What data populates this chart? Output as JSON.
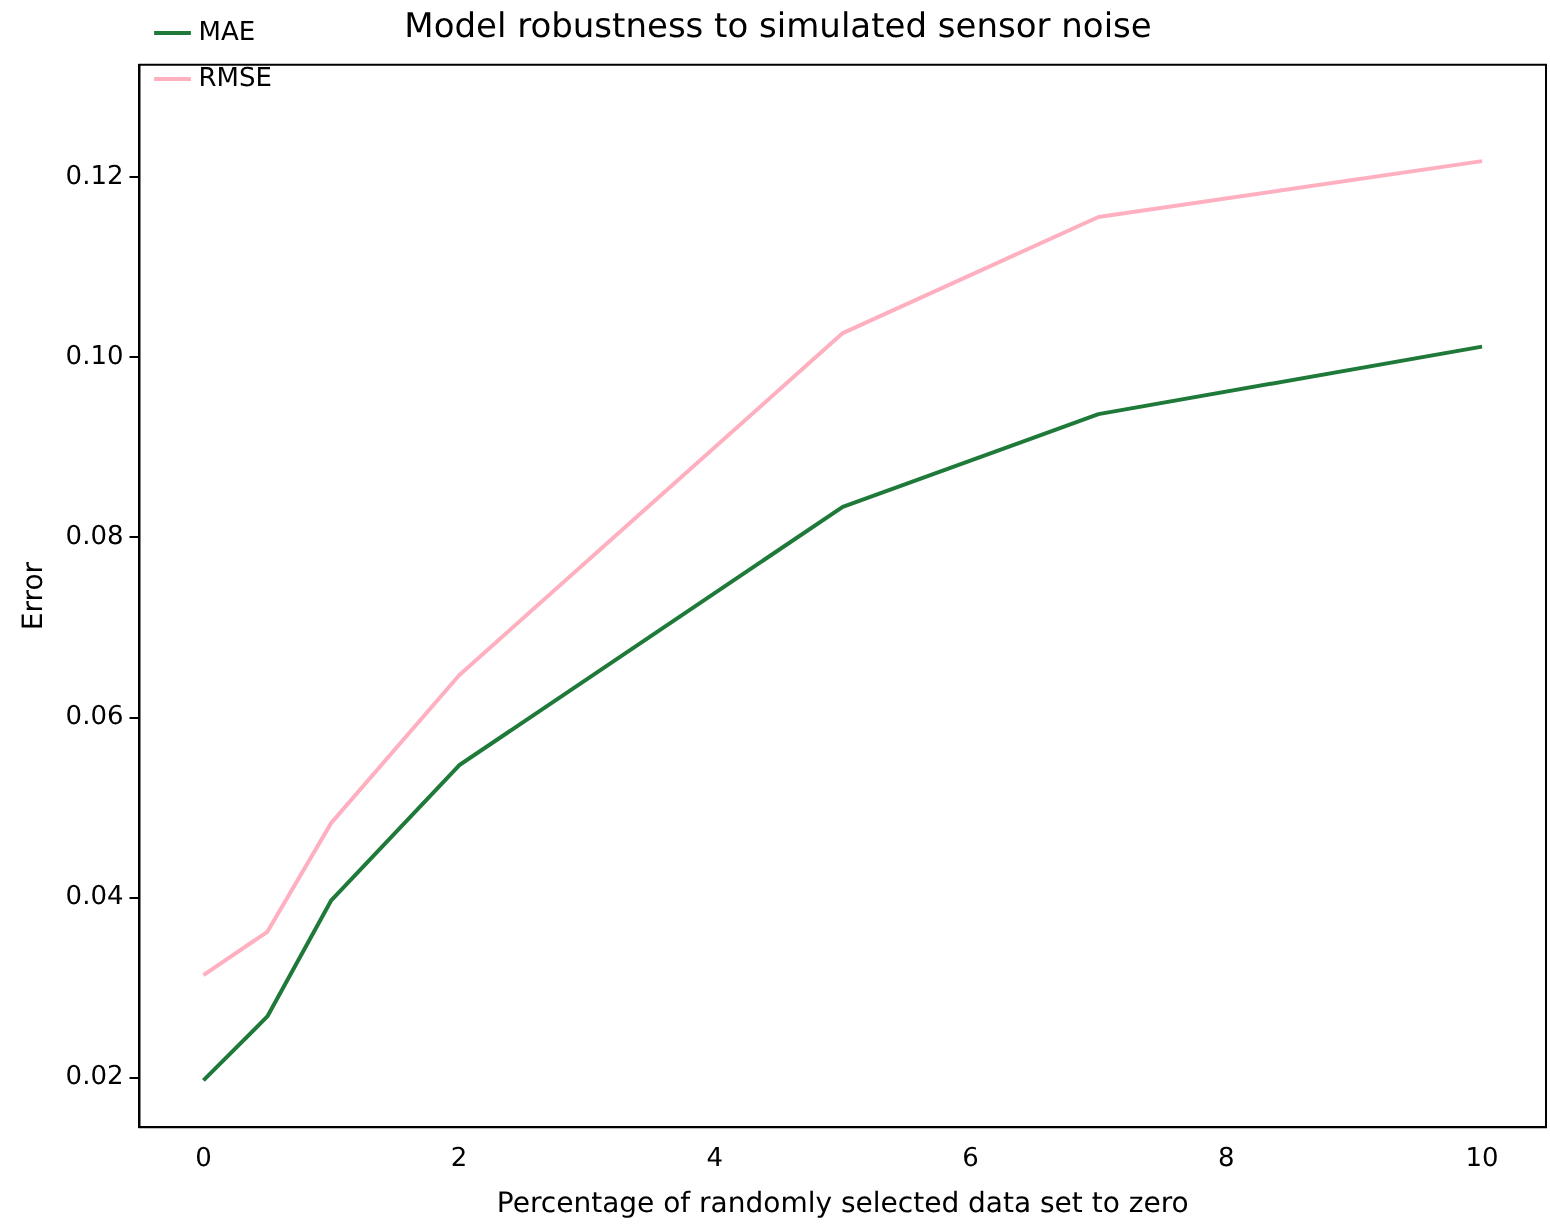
{
  "chart_data": {
    "type": "line",
    "title": "Model robustness to simulated sensor noise",
    "xlabel": "Percentage of randomly selected data set to zero",
    "ylabel": "Error",
    "x": [
      0,
      0.5,
      1,
      2,
      5,
      7,
      10
    ],
    "series": [
      {
        "name": "MAE",
        "color": "#1f7a3a",
        "values": [
          0.0197,
          0.0268,
          0.0397,
          0.0547,
          0.0834,
          0.0937,
          0.1012
        ]
      },
      {
        "name": "RMSE",
        "color": "#ffb0c0",
        "values": [
          0.0314,
          0.0362,
          0.0483,
          0.0647,
          0.1027,
          0.1156,
          0.1218
        ]
      }
    ],
    "xlim": [
      -0.5,
      10.5
    ],
    "xticks": [
      0,
      2,
      4,
      6,
      8,
      10
    ],
    "ylim": [
      0.0145,
      0.1325
    ],
    "yticks": [
      {
        "value": 0.02,
        "label": "0.02"
      },
      {
        "value": 0.04,
        "label": "0.04"
      },
      {
        "value": 0.06,
        "label": "0.06"
      },
      {
        "value": 0.08,
        "label": "0.08"
      },
      {
        "value": 0.1,
        "label": "0.10"
      },
      {
        "value": 0.12,
        "label": "0.12"
      }
    ],
    "grid": false,
    "legend": "top left",
    "marker": "none",
    "line_style": "solid"
  }
}
